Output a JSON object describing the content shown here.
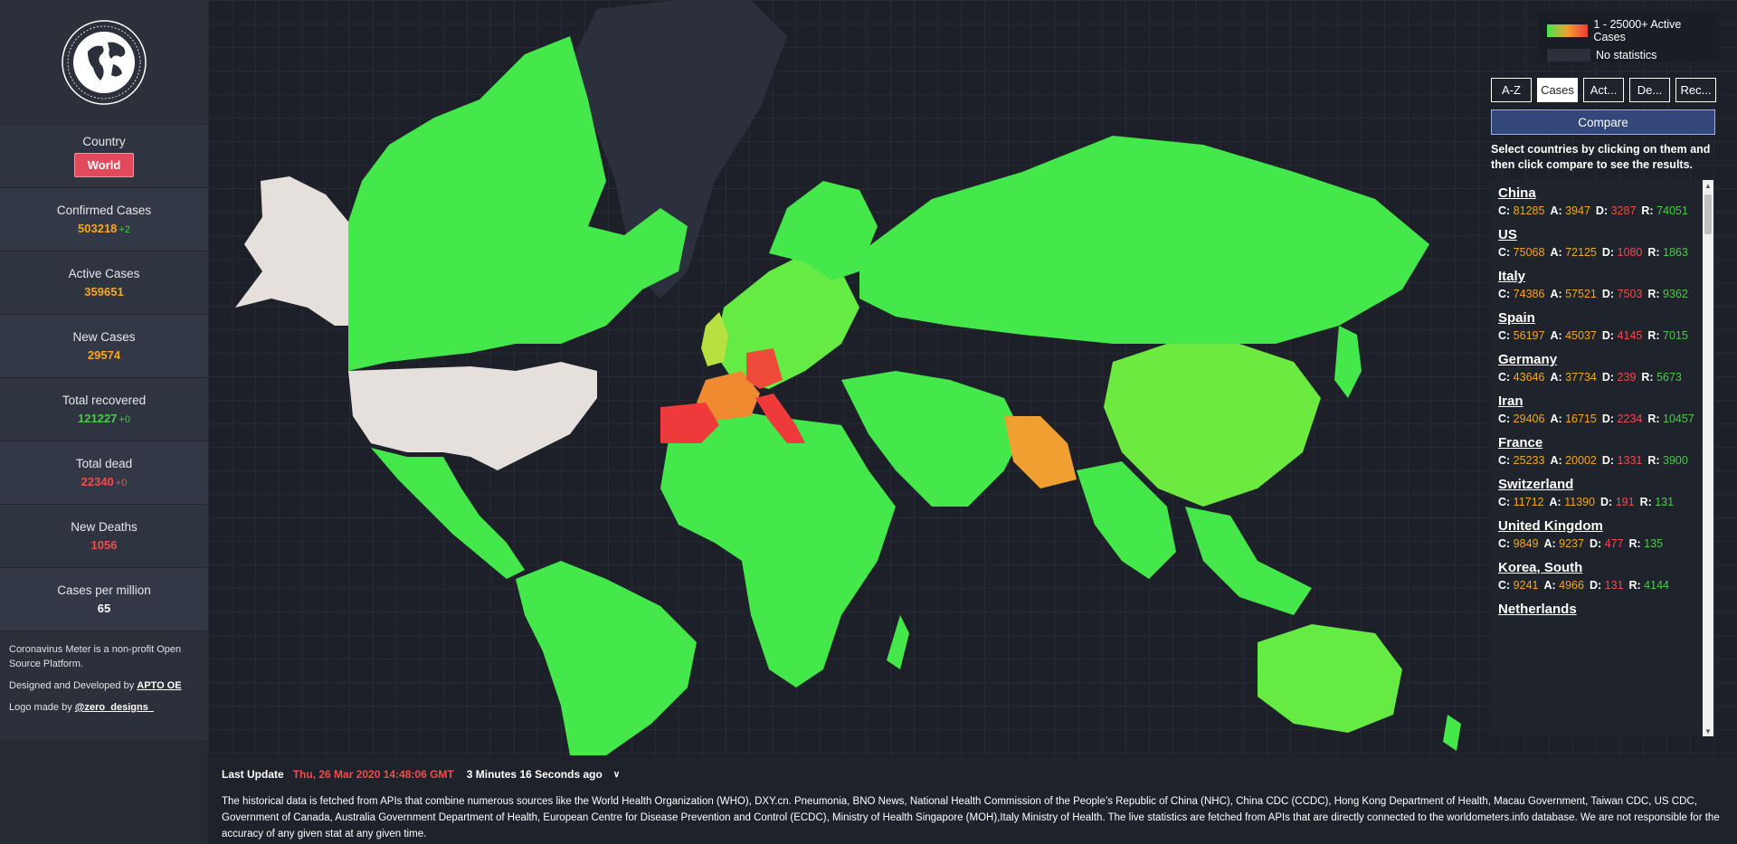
{
  "sidebar": {
    "country_label": "Country",
    "country_value": "World",
    "stats": [
      {
        "label": "Confirmed Cases",
        "value": "503218",
        "delta": "+2",
        "color": "orange",
        "delta_color": "green"
      },
      {
        "label": "Active Cases",
        "value": "359651",
        "delta": "",
        "color": "orange",
        "delta_color": ""
      },
      {
        "label": "New Cases",
        "value": "29574",
        "delta": "",
        "color": "orange",
        "delta_color": ""
      },
      {
        "label": "Total recovered",
        "value": "121227",
        "delta": "+0",
        "color": "green",
        "delta_color": "green"
      },
      {
        "label": "Total dead",
        "value": "22340",
        "delta": "+0",
        "color": "red",
        "delta_color": "red"
      },
      {
        "label": "New Deaths",
        "value": "1056",
        "delta": "",
        "color": "red",
        "delta_color": ""
      },
      {
        "label": "Cases per million",
        "value": "65",
        "delta": "",
        "color": "white",
        "delta_color": ""
      }
    ],
    "about": {
      "line1": "Coronavirus Meter is a non-profit Open Source Platform.",
      "designed_prefix": "Designed and Developed by ",
      "designed_link": "APTO OE",
      "logo_prefix": "Logo made by ",
      "logo_link": "@zero_designs_"
    }
  },
  "legend": {
    "active_label": "1 - 25000+ Active Cases",
    "nostat_label": "No statistics"
  },
  "panel": {
    "sort_buttons": [
      "A-Z",
      "Cases",
      "Act...",
      "De...",
      "Rec..."
    ],
    "active_sort": "Cases",
    "compare_label": "Compare",
    "hint": "Select countries by clicking on them and then click compare to see the results.",
    "countries": [
      {
        "name": "China",
        "c": "81285",
        "a": "3947",
        "d": "3287",
        "r": "74051"
      },
      {
        "name": "US",
        "c": "75068",
        "a": "72125",
        "d": "1080",
        "r": "1863"
      },
      {
        "name": "Italy",
        "c": "74386",
        "a": "57521",
        "d": "7503",
        "r": "9362"
      },
      {
        "name": "Spain",
        "c": "56197",
        "a": "45037",
        "d": "4145",
        "r": "7015"
      },
      {
        "name": "Germany",
        "c": "43646",
        "a": "37734",
        "d": "239",
        "r": "5673"
      },
      {
        "name": "Iran",
        "c": "29406",
        "a": "16715",
        "d": "2234",
        "r": "10457"
      },
      {
        "name": "France",
        "c": "25233",
        "a": "20002",
        "d": "1331",
        "r": "3900"
      },
      {
        "name": "Switzerland",
        "c": "11712",
        "a": "11390",
        "d": "191",
        "r": "131"
      },
      {
        "name": "United Kingdom",
        "c": "9849",
        "a": "9237",
        "d": "477",
        "r": "135"
      },
      {
        "name": "Korea, South",
        "c": "9241",
        "a": "4966",
        "d": "131",
        "r": "4144"
      },
      {
        "name": "Netherlands",
        "c": "",
        "a": "",
        "d": "",
        "r": ""
      }
    ]
  },
  "footer": {
    "last_update_label": "Last Update",
    "last_update_date": "Thu, 26 Mar 2020 14:48:06 GMT",
    "ago": "3 Minutes 16 Seconds ago",
    "disclaimer": "The historical data is fetched from APIs that combine numerous sources like the World Health Organization (WHO), DXY.cn. Pneumonia, BNO News, National Health Commission of the People’s Republic of China (NHC), China CDC (CCDC), Hong Kong Department of Health, Macau Government, Taiwan CDC, US CDC, Government of Canada, Australia Government Department of Health, European Centre for Disease Prevention and Control (ECDC), Ministry of Health Singapore (MOH),Italy Ministry of Health. The live statistics are fetched from APIs that are directly connected to the worldometers.info database. We are not responsible for the accuracy of any given stat at any given time."
  },
  "colors": {
    "low": "#44e84a",
    "mid": "#a0e040",
    "high_orange": "#f0a030",
    "high_red": "#ee3a3a",
    "no_stats": "#e6e0dc",
    "greenland": "#2c303d"
  }
}
